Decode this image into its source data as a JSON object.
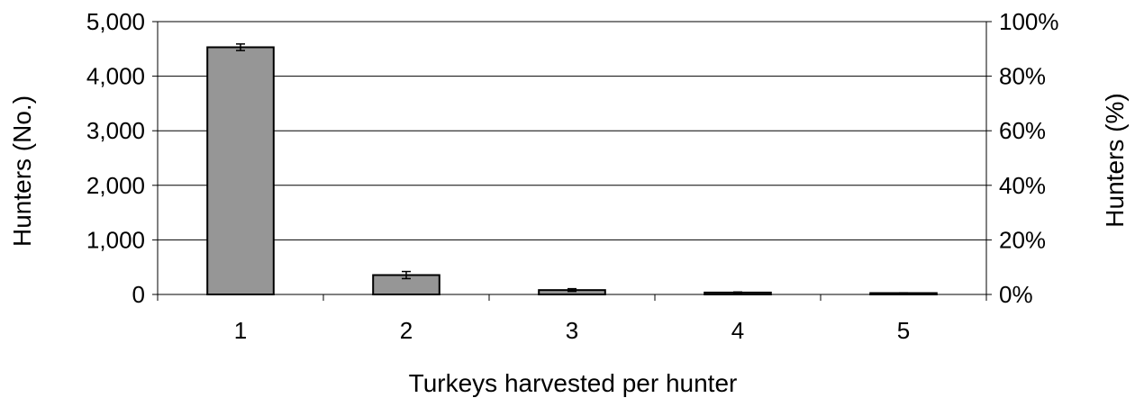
{
  "chart_data": {
    "type": "bar",
    "categories": [
      "1",
      "2",
      "3",
      "4",
      "5"
    ],
    "values": [
      4530,
      355,
      80,
      35,
      25
    ],
    "errors": [
      60,
      65,
      25,
      10,
      5
    ],
    "xlabel": "Turkeys harvested per hunter",
    "ylabel": "Hunters (No.)",
    "y2label": "Hunters (%)",
    "ylim": [
      0,
      5000
    ],
    "yticks": [
      "0",
      "1,000",
      "2,000",
      "3,000",
      "4,000",
      "5,000"
    ],
    "y2lim": [
      0,
      100
    ],
    "y2ticks": [
      "0%",
      "20%",
      "40%",
      "60%",
      "80%",
      "100%"
    ],
    "grid": true,
    "legend": "none",
    "bar_color": "#969696"
  }
}
